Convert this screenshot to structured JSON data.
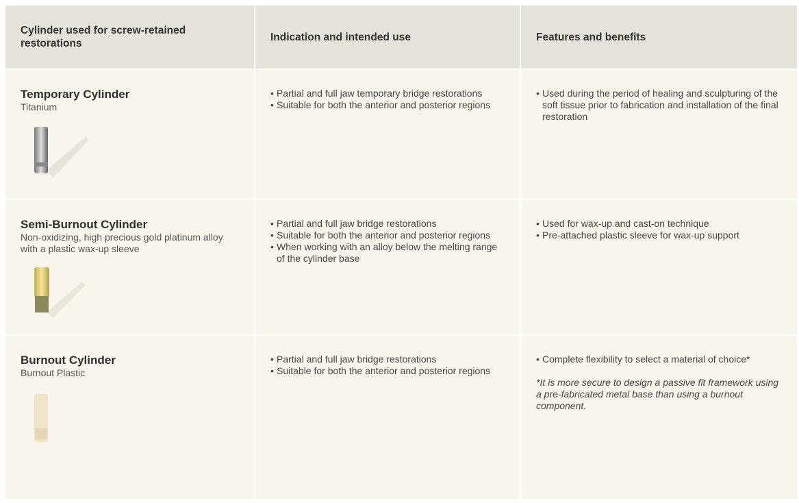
{
  "table": {
    "header": [
      "Cylinder used for screw-retained restorations",
      "Indication and intended use",
      "Features and benefits"
    ],
    "rows": [
      {
        "name": "Temporary Cylinder",
        "material": "Titanium",
        "indications": [
          "Partial and full jaw temporary bridge restorations",
          "Suitable for both the anterior and posterior regions"
        ],
        "features": [
          "Used during the period of healing and sculpturing of the soft tissue prior to fabrication and installation of the final restoration"
        ]
      },
      {
        "name": "Semi-Burnout Cylinder",
        "material": "Non-oxidizing, high precious gold platinum alloy with a plastic wax-up sleeve",
        "indications": [
          "Partial and full jaw bridge restorations",
          "Suitable for both the anterior and posterior regions",
          "When working with an alloy below the melting range of the cylinder base"
        ],
        "features": [
          "Used for wax-up and cast-on technique",
          "Pre-attached plastic sleeve for wax-up support"
        ]
      },
      {
        "name": "Burnout Cylinder",
        "material": "Burnout Plastic",
        "indications": [
          "Partial and full jaw bridge restorations",
          "Suitable for both the anterior and posterior regions"
        ],
        "features": [
          "Complete flexibility to select a material of choice*"
        ],
        "note": "*It is more secure to design a passive fit framework using a pre-fabricated metal base than using a burnout component."
      }
    ]
  }
}
